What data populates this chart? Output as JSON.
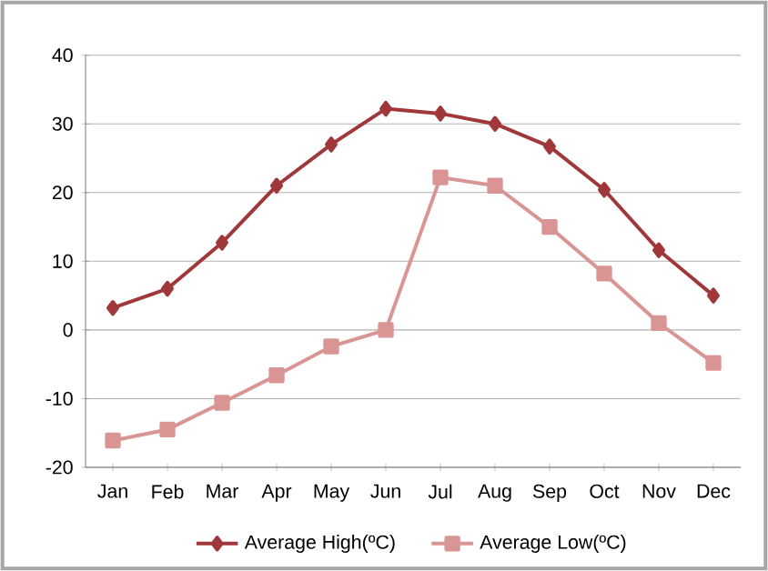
{
  "chart_data": {
    "type": "line",
    "categories": [
      "Jan",
      "Feb",
      "Mar",
      "Apr",
      "May",
      "Jun",
      "Jul",
      "Aug",
      "Sep",
      "Oct",
      "Nov",
      "Dec"
    ],
    "series": [
      {
        "name": "Average High(ºC)",
        "color": "#a0373a",
        "marker": "diamond",
        "values": [
          3.2,
          6,
          12.7,
          21,
          27,
          32.2,
          31.5,
          30,
          26.7,
          20.4,
          11.6,
          5
        ]
      },
      {
        "name": "Average Low(ºC)",
        "color": "#d99594",
        "marker": "square",
        "values": [
          -16.1,
          -14.5,
          -10.6,
          -6.6,
          -2.4,
          0,
          22.2,
          21,
          15,
          8.2,
          1,
          -4.8
        ]
      }
    ],
    "ylim": [
      -20,
      40
    ],
    "yticks": [
      -20,
      -10,
      0,
      10,
      20,
      30,
      40
    ],
    "grid": "y",
    "legend": "bottom",
    "line_style": "solid"
  }
}
